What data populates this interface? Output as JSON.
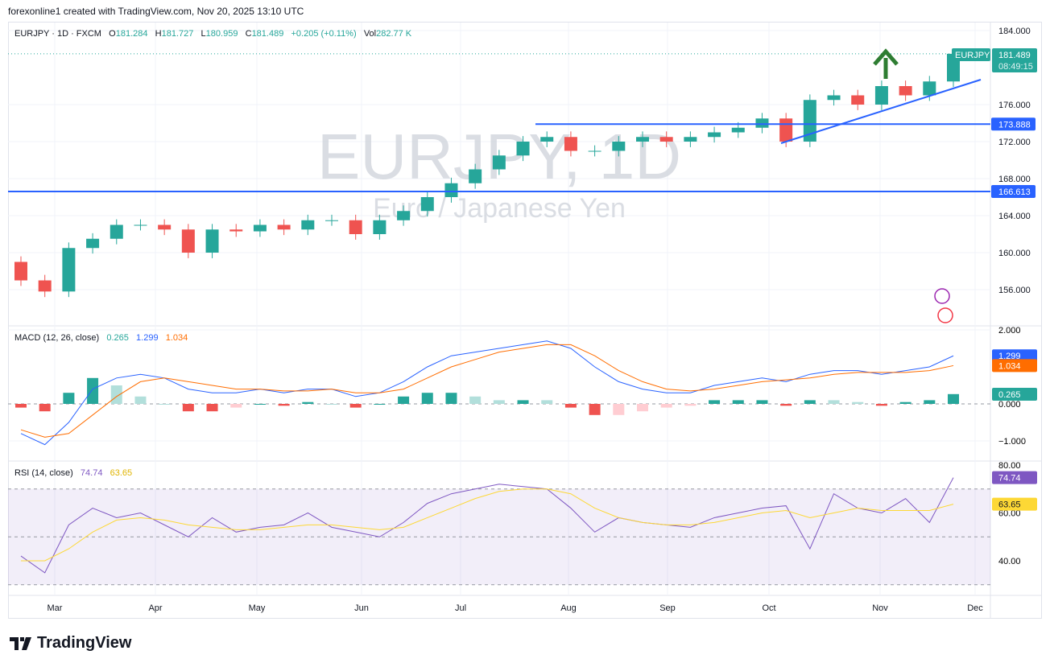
{
  "credit": "forexonline1 created with TradingView.com, Nov 20, 2025 13:10 UTC",
  "legend": {
    "symbol": "EURJPY · 1D · FXCM",
    "o_label": "O",
    "o": "181.284",
    "h_label": "H",
    "h": "181.727",
    "l_label": "L",
    "l": "180.959",
    "c_label": "C",
    "c": "181.489",
    "change": "+0.205 (+0.11%)",
    "vol_label": "Vol",
    "vol": "282.77 K"
  },
  "watermark": {
    "title": "EURJPY, 1D",
    "subtitle": "Euro / Japanese Yen"
  },
  "price_badge": {
    "symbol": "EURJPY",
    "price": "181.489",
    "countdown": "08:49:15"
  },
  "levels": [
    {
      "label": "173.888",
      "value": 173.888
    },
    {
      "label": "166.613",
      "value": 166.613
    }
  ],
  "macd_legend": {
    "title": "MACD (12, 26, close)",
    "hist": "0.265",
    "macd": "1.299",
    "signal": "1.034"
  },
  "rsi_legend": {
    "title": "RSI (14, close)",
    "rsi": "74.74",
    "ma": "63.65"
  },
  "brand": "TradingView",
  "colors": {
    "up": "#26a69a",
    "down": "#ef5350",
    "line": "#2962ff",
    "macd": "#2962ff",
    "signal": "#ff6d00",
    "rsi": "#7e57c2",
    "rsi_ma": "#fdd835",
    "arrow": "#2e7d32"
  },
  "chart_data": [
    {
      "type": "candlestick",
      "title": "EURJPY · 1D · FXCM",
      "x_ticks": [
        "Mar",
        "Apr",
        "May",
        "Jun",
        "Jul",
        "Aug",
        "Sep",
        "Oct",
        "Nov",
        "Dec"
      ],
      "y_ticks": [
        "184.000",
        "176.000",
        "172.000",
        "168.000",
        "164.000",
        "160.000",
        "156.000"
      ],
      "interval_of_points": "weekly approximation",
      "closes": [
        157.0,
        155.8,
        160.5,
        161.5,
        163.0,
        163.0,
        162.5,
        160.0,
        162.5,
        162.3,
        163.0,
        162.5,
        163.5,
        163.5,
        162.0,
        163.5,
        164.5,
        166.0,
        167.5,
        169.0,
        170.5,
        172.0,
        172.5,
        171.0,
        171.0,
        172.0,
        172.5,
        172.0,
        172.5,
        173.0,
        173.5,
        174.5,
        172.0,
        176.5,
        177.0,
        176.0,
        178.0,
        177.0,
        178.5,
        181.489
      ],
      "open_first": 159.0,
      "annotations": [
        "horizontal line 173.888",
        "horizontal line 166.613",
        "rising trendline Oct–Nov",
        "up arrow"
      ]
    },
    {
      "type": "line",
      "title": "MACD (12, 26, close)",
      "y_ticks": [
        "2.000",
        "0.000",
        "−1.000"
      ],
      "series": [
        {
          "name": "MACD",
          "values": [
            -0.8,
            -1.1,
            -0.5,
            0.4,
            0.7,
            0.8,
            0.7,
            0.4,
            0.3,
            0.3,
            0.4,
            0.3,
            0.4,
            0.4,
            0.2,
            0.3,
            0.6,
            1.0,
            1.3,
            1.4,
            1.5,
            1.6,
            1.7,
            1.5,
            1.0,
            0.6,
            0.4,
            0.3,
            0.3,
            0.5,
            0.6,
            0.7,
            0.6,
            0.8,
            0.9,
            0.9,
            0.8,
            0.9,
            1.0,
            1.299
          ]
        },
        {
          "name": "Signal",
          "values": [
            -0.7,
            -0.9,
            -0.8,
            -0.3,
            0.2,
            0.6,
            0.7,
            0.6,
            0.5,
            0.4,
            0.4,
            0.35,
            0.35,
            0.4,
            0.3,
            0.3,
            0.4,
            0.7,
            1.0,
            1.2,
            1.4,
            1.5,
            1.6,
            1.6,
            1.3,
            0.9,
            0.6,
            0.4,
            0.35,
            0.4,
            0.5,
            0.6,
            0.65,
            0.7,
            0.8,
            0.85,
            0.85,
            0.85,
            0.9,
            1.034
          ]
        }
      ]
    },
    {
      "type": "line",
      "title": "RSI (14, close)",
      "y_ticks": [
        "80.00",
        "60.00",
        "40.00"
      ],
      "bands": [
        70,
        50,
        30
      ],
      "series": [
        {
          "name": "RSI",
          "values": [
            42,
            35,
            55,
            62,
            58,
            60,
            55,
            50,
            58,
            52,
            54,
            55,
            60,
            54,
            52,
            50,
            56,
            64,
            68,
            70,
            72,
            71,
            70,
            62,
            52,
            58,
            56,
            55,
            54,
            58,
            60,
            62,
            63,
            45,
            68,
            62,
            60,
            66,
            56,
            74.74
          ]
        },
        {
          "name": "RSI MA",
          "values": [
            40,
            40,
            45,
            52,
            57,
            58,
            57,
            55,
            54,
            53,
            53,
            54,
            55,
            55,
            54,
            53,
            54,
            58,
            62,
            66,
            69,
            70,
            70,
            68,
            62,
            58,
            56,
            55,
            55,
            56,
            58,
            60,
            61,
            58,
            60,
            62,
            61,
            61,
            61,
            63.65
          ]
        }
      ]
    }
  ]
}
